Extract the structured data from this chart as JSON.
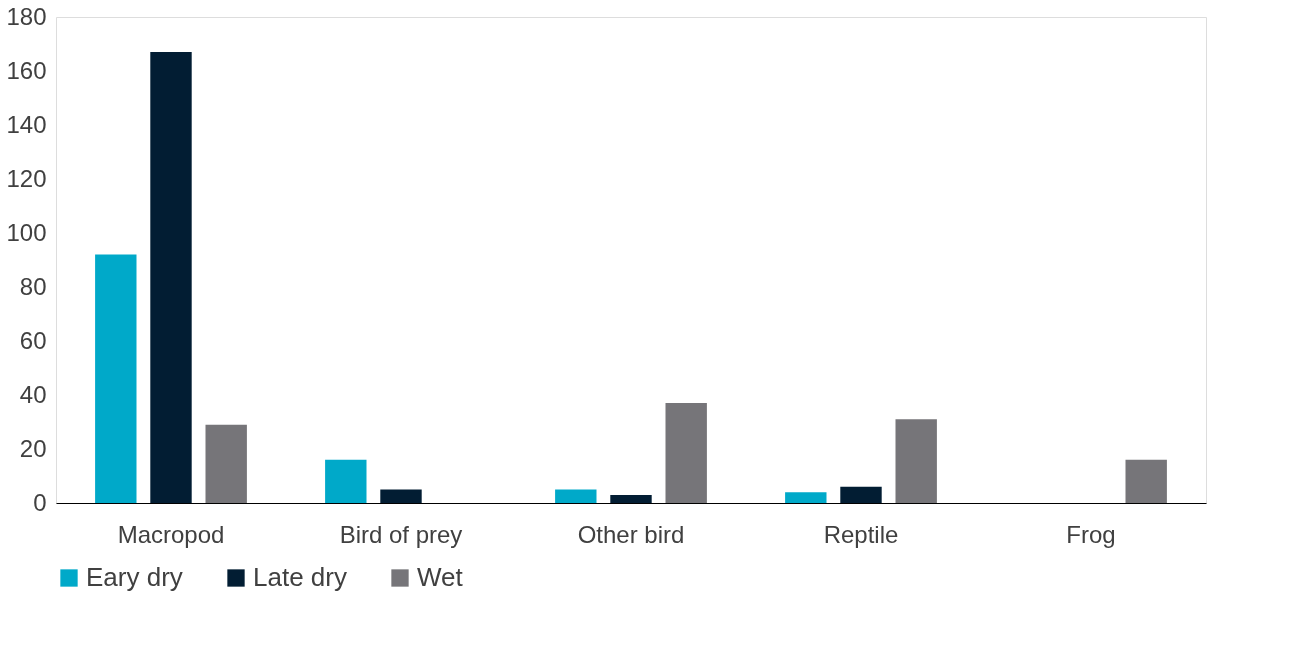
{
  "chart_data": {
    "type": "bar",
    "categories": [
      "Macropod",
      "Bird of prey",
      "Other bird",
      "Reptile",
      "Frog"
    ],
    "series": [
      {
        "name": "Eary dry",
        "color": "#00a9c9",
        "values": [
          92,
          16,
          5,
          4,
          0
        ]
      },
      {
        "name": "Late dry",
        "color": "#021d33",
        "values": [
          167,
          5,
          3,
          6,
          0
        ]
      },
      {
        "name": "Wet",
        "color": "#767579",
        "values": [
          29,
          0,
          37,
          31,
          16
        ]
      }
    ],
    "ylim": [
      0,
      180
    ],
    "yticks": [
      0,
      20,
      40,
      60,
      80,
      100,
      120,
      140,
      160,
      180
    ],
    "grid": false,
    "legend": "bottom"
  }
}
